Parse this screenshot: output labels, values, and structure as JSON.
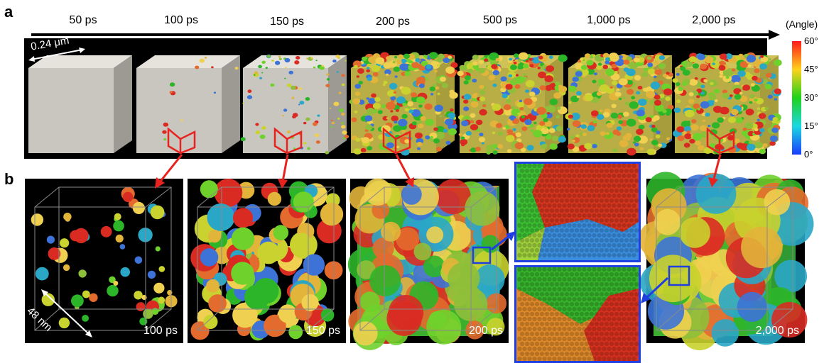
{
  "panel_a": {
    "letter": "a",
    "time_labels": [
      "50 ps",
      "100 ps",
      "150 ps",
      "200 ps",
      "500 ps",
      "1,000 ps",
      "2,000 ps"
    ],
    "scale_label": "0.24 μm"
  },
  "colorbar": {
    "title": "(Angle)",
    "ticks": [
      "60°",
      "45°",
      "30°",
      "15°",
      "0°"
    ],
    "colors": [
      "#ff1a1a",
      "#ffd21a",
      "#1fd21a",
      "#1ad8e0",
      "#1a3cff"
    ]
  },
  "panel_b": {
    "letter": "b",
    "scale_label": "48 nm",
    "inset_labels": [
      "100 ps",
      "150 ps",
      "200 ps",
      "2,000 ps"
    ]
  },
  "colors": {
    "arrow": "#e8231f",
    "zoom_box": "#1f3fe0",
    "grain_palette": [
      "#2db52a",
      "#6fd12c",
      "#c9d22e",
      "#e2b43a",
      "#e36b2d",
      "#d92b22",
      "#2aa7c7",
      "#3d73d6",
      "#8fbf3a",
      "#f0d050"
    ]
  }
}
